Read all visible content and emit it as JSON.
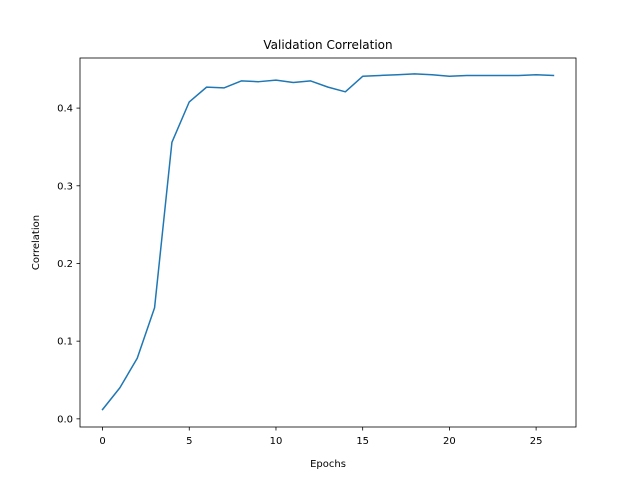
{
  "chart_data": {
    "type": "line",
    "title": "Validation Correlation",
    "xlabel": "Epochs",
    "ylabel": "Correlation",
    "xlim": [
      -1.3,
      27.3
    ],
    "ylim": [
      -0.0105,
      0.4645
    ],
    "grid": false,
    "x_ticks": [
      0,
      5,
      10,
      15,
      20,
      25
    ],
    "y_ticks": [
      0.0,
      0.1,
      0.2,
      0.3,
      0.4
    ],
    "x_tick_labels": [
      "0",
      "5",
      "10",
      "15",
      "20",
      "25"
    ],
    "y_tick_labels": [
      "0.0",
      "0.1",
      "0.2",
      "0.3",
      "0.4"
    ],
    "series": [
      {
        "color": "#1f77b4",
        "x": [
          0,
          1,
          2,
          3,
          4,
          5,
          6,
          7,
          8,
          9,
          10,
          11,
          12,
          13,
          14,
          15,
          16,
          17,
          18,
          19,
          20,
          21,
          22,
          23,
          24,
          25,
          26
        ],
        "values": [
          0.012,
          0.04,
          0.078,
          0.143,
          0.356,
          0.408,
          0.427,
          0.426,
          0.435,
          0.434,
          0.436,
          0.433,
          0.435,
          0.427,
          0.421,
          0.441,
          0.442,
          0.443,
          0.444,
          0.443,
          0.441,
          0.442,
          0.442,
          0.442,
          0.442,
          0.443,
          0.442
        ]
      }
    ]
  }
}
